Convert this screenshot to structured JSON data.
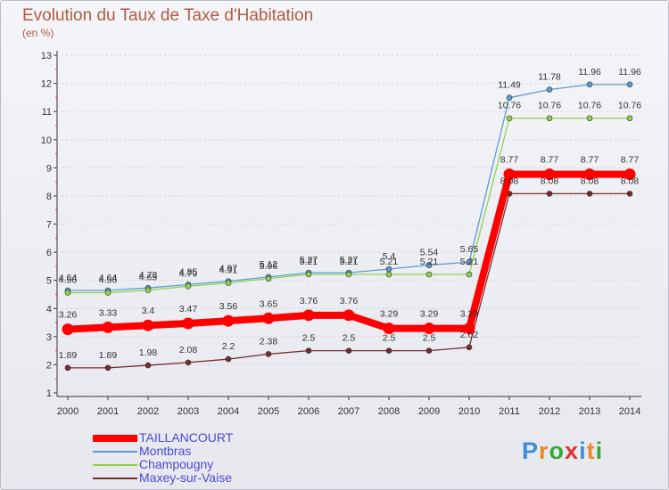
{
  "title": "Evolution du Taux de Taxe d'Habitation",
  "subtitle": "(en %)",
  "logo": {
    "letters": [
      "P",
      "r",
      "o",
      "x",
      "i",
      "t",
      "i"
    ],
    "colors": [
      "#3a8fd8",
      "#f08a20",
      "#39a935",
      "#e03030",
      "#3a8fd8",
      "#f08a20",
      "#39a935"
    ]
  },
  "chart_data": {
    "type": "line",
    "title": "Evolution du Taux de Taxe d'Habitation",
    "ylabel": "(en %)",
    "xlabel": "",
    "ylim": [
      1,
      13
    ],
    "yticks": [
      "1",
      "2",
      "3",
      "4",
      "5",
      "6",
      "7",
      "8",
      "9",
      "10",
      "11",
      "12",
      "13"
    ],
    "x": [
      "2000",
      "2001",
      "2002",
      "2003",
      "2004",
      "2005",
      "2006",
      "2007",
      "2008",
      "2009",
      "2010",
      "2011",
      "2012",
      "2013",
      "2014"
    ],
    "legend_position": "bottom-left",
    "series": [
      {
        "name": "Montbras",
        "color": "#5b9bd5",
        "values": [
          4.64,
          4.64,
          4.73,
          4.85,
          4.97,
          5.12,
          5.27,
          5.27,
          5.4,
          5.54,
          5.65,
          11.49,
          11.78,
          11.96,
          11.96
        ],
        "labels": [
          "4.64",
          "4.64",
          "4.73",
          "4.85",
          "4.97",
          "5.12",
          "5.27",
          "5.27",
          "5.4",
          "5.54",
          "5.65",
          "11.49",
          "11.78",
          "11.96",
          "11.96"
        ]
      },
      {
        "name": "Champougny",
        "color": "#8ed24a",
        "values": [
          4.56,
          4.56,
          4.65,
          4.79,
          4.91,
          5.06,
          5.21,
          5.21,
          5.21,
          5.21,
          5.21,
          10.76,
          10.76,
          10.76,
          10.76
        ],
        "labels": [
          "4.56",
          "4.56",
          "4.65",
          "4.79",
          "4.91",
          "5.06",
          "5.21",
          "5.21",
          "5.21",
          "5.21",
          "5.21",
          "10.76",
          "10.76",
          "10.76",
          "10.76"
        ]
      },
      {
        "name": "Maxey-sur-Vaise",
        "color": "#7a2a2a",
        "values": [
          1.89,
          1.89,
          1.98,
          2.08,
          2.2,
          2.38,
          2.5,
          2.5,
          2.5,
          2.5,
          2.62,
          8.08,
          8.08,
          8.08,
          8.08
        ],
        "labels": [
          "1.89",
          "1.89",
          "1.98",
          "2.08",
          "2.2",
          "2.38",
          "2.5",
          "2.5",
          "2.5",
          "2.5",
          "2.62",
          "8.08",
          "8.08",
          "8.08",
          "8.08"
        ]
      },
      {
        "name": "TAILLANCOURT",
        "color": "#ff0000",
        "highlight": true,
        "values": [
          3.26,
          3.33,
          3.4,
          3.47,
          3.56,
          3.65,
          3.76,
          3.76,
          3.29,
          3.29,
          3.29,
          8.77,
          8.77,
          8.77,
          8.77
        ],
        "labels": [
          "3.26",
          "3.33",
          "3.4",
          "3.47",
          "3.56",
          "3.65",
          "3.76",
          "3.76",
          "3.29",
          "3.29",
          "3.29",
          "8.77",
          "8.77",
          "8.77",
          "8.77"
        ]
      }
    ],
    "legend_order": [
      "TAILLANCOURT",
      "Montbras",
      "Champougny",
      "Maxey-sur-Vaise"
    ]
  }
}
